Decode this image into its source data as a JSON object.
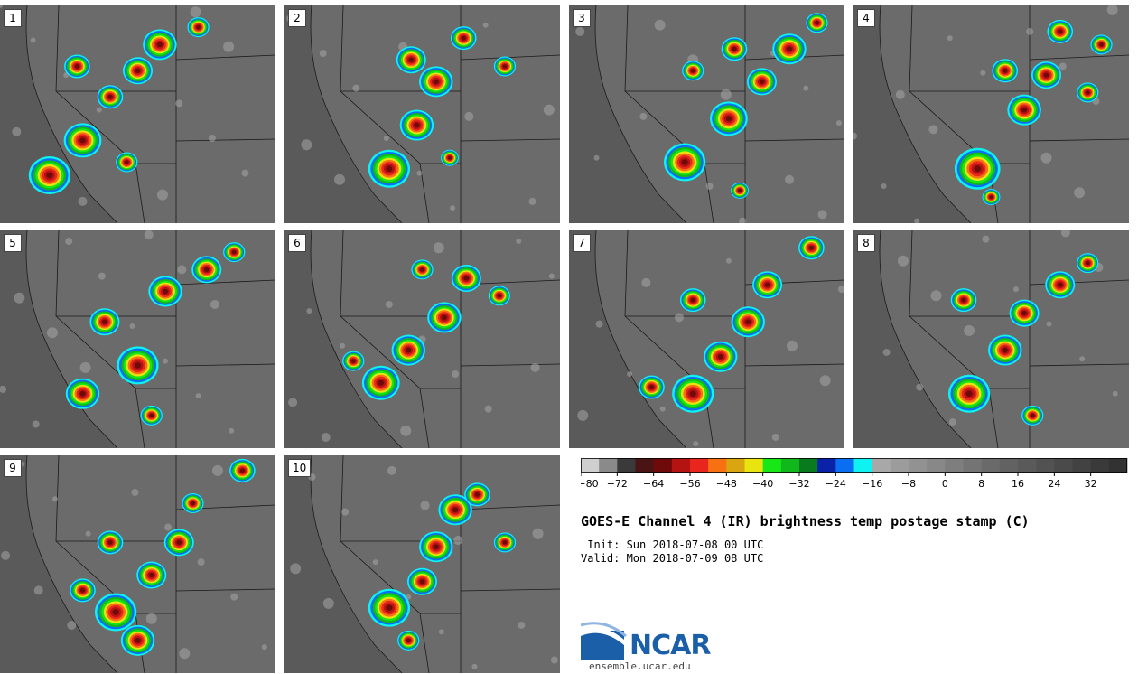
{
  "panels": [
    {
      "label": "1",
      "cells": [
        [
          0.18,
          0.78,
          10
        ],
        [
          0.3,
          0.62,
          9
        ],
        [
          0.4,
          0.42,
          6
        ],
        [
          0.5,
          0.3,
          7
        ],
        [
          0.58,
          0.18,
          8
        ],
        [
          0.72,
          0.1,
          5
        ],
        [
          0.28,
          0.28,
          6
        ],
        [
          0.46,
          0.72,
          5
        ]
      ]
    },
    {
      "label": "2",
      "cells": [
        [
          0.38,
          0.75,
          10
        ],
        [
          0.48,
          0.55,
          8
        ],
        [
          0.55,
          0.35,
          8
        ],
        [
          0.46,
          0.25,
          7
        ],
        [
          0.65,
          0.15,
          6
        ],
        [
          0.8,
          0.28,
          5
        ],
        [
          0.6,
          0.7,
          4
        ]
      ]
    },
    {
      "label": "3",
      "cells": [
        [
          0.42,
          0.72,
          10
        ],
        [
          0.58,
          0.52,
          9
        ],
        [
          0.7,
          0.35,
          7
        ],
        [
          0.8,
          0.2,
          8
        ],
        [
          0.6,
          0.2,
          6
        ],
        [
          0.45,
          0.3,
          5
        ],
        [
          0.9,
          0.08,
          5
        ],
        [
          0.62,
          0.85,
          4
        ]
      ]
    },
    {
      "label": "4",
      "cells": [
        [
          0.45,
          0.75,
          11
        ],
        [
          0.62,
          0.48,
          8
        ],
        [
          0.7,
          0.32,
          7
        ],
        [
          0.55,
          0.3,
          6
        ],
        [
          0.75,
          0.12,
          6
        ],
        [
          0.85,
          0.4,
          5
        ],
        [
          0.5,
          0.88,
          4
        ],
        [
          0.9,
          0.18,
          5
        ]
      ]
    },
    {
      "label": "5",
      "cells": [
        [
          0.5,
          0.62,
          10
        ],
        [
          0.38,
          0.42,
          7
        ],
        [
          0.6,
          0.28,
          8
        ],
        [
          0.75,
          0.18,
          7
        ],
        [
          0.3,
          0.75,
          8
        ],
        [
          0.55,
          0.85,
          5
        ],
        [
          0.85,
          0.1,
          5
        ]
      ]
    },
    {
      "label": "6",
      "cells": [
        [
          0.35,
          0.7,
          9
        ],
        [
          0.45,
          0.55,
          8
        ],
        [
          0.58,
          0.4,
          8
        ],
        [
          0.66,
          0.22,
          7
        ],
        [
          0.5,
          0.18,
          5
        ],
        [
          0.78,
          0.3,
          5
        ],
        [
          0.25,
          0.6,
          5
        ]
      ]
    },
    {
      "label": "7",
      "cells": [
        [
          0.45,
          0.75,
          10
        ],
        [
          0.55,
          0.58,
          8
        ],
        [
          0.65,
          0.42,
          8
        ],
        [
          0.72,
          0.25,
          7
        ],
        [
          0.45,
          0.32,
          6
        ],
        [
          0.88,
          0.08,
          6
        ],
        [
          0.3,
          0.72,
          6
        ]
      ]
    },
    {
      "label": "8",
      "cells": [
        [
          0.42,
          0.75,
          10
        ],
        [
          0.55,
          0.55,
          8
        ],
        [
          0.62,
          0.38,
          7
        ],
        [
          0.75,
          0.25,
          7
        ],
        [
          0.4,
          0.32,
          6
        ],
        [
          0.65,
          0.85,
          5
        ],
        [
          0.85,
          0.15,
          5
        ]
      ]
    },
    {
      "label": "9",
      "cells": [
        [
          0.42,
          0.72,
          10
        ],
        [
          0.5,
          0.85,
          8
        ],
        [
          0.55,
          0.55,
          7
        ],
        [
          0.65,
          0.4,
          7
        ],
        [
          0.4,
          0.4,
          6
        ],
        [
          0.88,
          0.07,
          6
        ],
        [
          0.3,
          0.62,
          6
        ],
        [
          0.7,
          0.22,
          5
        ]
      ]
    },
    {
      "label": "10",
      "cells": [
        [
          0.38,
          0.7,
          10
        ],
        [
          0.55,
          0.42,
          8
        ],
        [
          0.62,
          0.25,
          8
        ],
        [
          0.7,
          0.18,
          6
        ],
        [
          0.5,
          0.58,
          7
        ],
        [
          0.8,
          0.4,
          5
        ],
        [
          0.45,
          0.85,
          5
        ]
      ]
    }
  ],
  "colorbar": {
    "colors": [
      "#cfcfcf",
      "#8a8a8a",
      "#3a3a3a",
      "#4a1414",
      "#6e0a0a",
      "#b51212",
      "#e8261e",
      "#f77011",
      "#d9a611",
      "#e9e30f",
      "#17e617",
      "#10b81c",
      "#0a7a1e",
      "#0a22a8",
      "#0a6ef2",
      "#0ef2f2",
      "#a8a8a8",
      "#9c9c9c",
      "#929292",
      "#888888",
      "#7e7e7e",
      "#747474",
      "#6a6a6a",
      "#626262",
      "#5a5a5a",
      "#525252",
      "#4a4a4a",
      "#424242",
      "#3a3a3a",
      "#323232"
    ],
    "tick_labels": [
      "−80",
      "−72",
      "−64",
      "−56",
      "−48",
      "−40",
      "−32",
      "−24",
      "−16",
      "−8",
      "0",
      "8",
      "16",
      "24",
      "32"
    ]
  },
  "title": "GOES-E Channel 4 (IR) brightness temp postage stamp (C)",
  "init_line": " Init: Sun 2018-07-08 00 UTC",
  "valid_line": "Valid: Mon 2018-07-09 08 UTC",
  "logo_text": "NCAR",
  "website": "ensemble.ucar.edu"
}
